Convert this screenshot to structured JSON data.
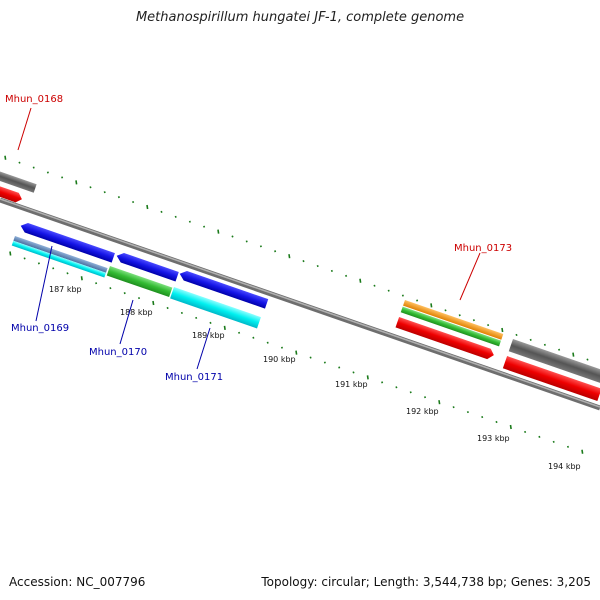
{
  "title": "Methanospirillum hungatei JF-1, complete genome",
  "footer": {
    "accession": "Accession: NC_007796",
    "summary": "Topology: circular; Length: 3,544,738 bp; Genes: 3,205"
  },
  "colors": {
    "backbone": "#8a8a8a",
    "tick": "#1a7a1a",
    "label_red": "#cc0000",
    "label_blue": "#0000aa"
  },
  "scale_labels": [
    "187 kbp",
    "188 kbp",
    "189 kbp",
    "190 kbp",
    "191 kbp",
    "192 kbp",
    "193 kbp",
    "194 kbp"
  ],
  "gene_labels": [
    {
      "id": "Mhun_0168",
      "color": "#cc0000"
    },
    {
      "id": "Mhun_0169",
      "color": "#0000aa"
    },
    {
      "id": "Mhun_0170",
      "color": "#0000aa"
    },
    {
      "id": "Mhun_0171",
      "color": "#0000aa"
    },
    {
      "id": "Mhun_0173",
      "color": "#cc0000"
    }
  ]
}
